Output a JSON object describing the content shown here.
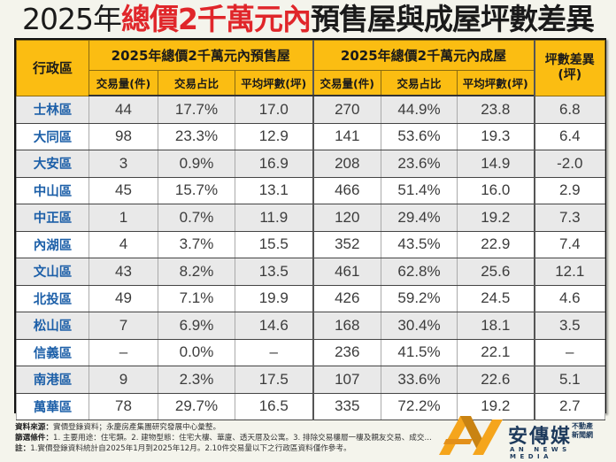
{
  "title": {
    "year": "2025年",
    "highlight": "總價2千萬元內",
    "rest": "預售屋與成屋坪數差異"
  },
  "colors": {
    "header_bg": "#fbbd12",
    "title_red": "#e0262a",
    "district_blue": "#1c5fa8",
    "row_alt": "#e9e9e9"
  },
  "table": {
    "district_header": "行政區",
    "group_presale": "2025年總價2千萬元內預售屋",
    "group_existing": "2025年總價2千萬元內成屋",
    "diff_header_line1": "坪數差異",
    "diff_header_line2": "(坪)",
    "sub_headers": [
      "交易量(件)",
      "交易占比",
      "平均坪數(坪)",
      "交易量(件)",
      "交易占比",
      "平均坪數(坪)"
    ],
    "rows": [
      {
        "district": "士林區",
        "pre_count": "44",
        "pre_share": "17.7%",
        "pre_avg": "17.0",
        "ex_count": "270",
        "ex_share": "44.9%",
        "ex_avg": "23.8",
        "diff": "6.8"
      },
      {
        "district": "大同區",
        "pre_count": "98",
        "pre_share": "23.3%",
        "pre_avg": "12.9",
        "ex_count": "141",
        "ex_share": "53.6%",
        "ex_avg": "19.3",
        "diff": "6.4"
      },
      {
        "district": "大安區",
        "pre_count": "3",
        "pre_share": "0.9%",
        "pre_avg": "16.9",
        "ex_count": "208",
        "ex_share": "23.6%",
        "ex_avg": "14.9",
        "diff": "-2.0"
      },
      {
        "district": "中山區",
        "pre_count": "45",
        "pre_share": "15.7%",
        "pre_avg": "13.1",
        "ex_count": "466",
        "ex_share": "51.4%",
        "ex_avg": "16.0",
        "diff": "2.9"
      },
      {
        "district": "中正區",
        "pre_count": "1",
        "pre_share": "0.7%",
        "pre_avg": "11.9",
        "ex_count": "120",
        "ex_share": "29.4%",
        "ex_avg": "19.2",
        "diff": "7.3"
      },
      {
        "district": "內湖區",
        "pre_count": "4",
        "pre_share": "3.7%",
        "pre_avg": "15.5",
        "ex_count": "352",
        "ex_share": "43.5%",
        "ex_avg": "22.9",
        "diff": "7.4"
      },
      {
        "district": "文山區",
        "pre_count": "43",
        "pre_share": "8.2%",
        "pre_avg": "13.5",
        "ex_count": "461",
        "ex_share": "62.8%",
        "ex_avg": "25.6",
        "diff": "12.1"
      },
      {
        "district": "北投區",
        "pre_count": "49",
        "pre_share": "7.1%",
        "pre_avg": "19.9",
        "ex_count": "426",
        "ex_share": "59.2%",
        "ex_avg": "24.5",
        "diff": "4.6"
      },
      {
        "district": "松山區",
        "pre_count": "7",
        "pre_share": "6.9%",
        "pre_avg": "14.6",
        "ex_count": "168",
        "ex_share": "30.4%",
        "ex_avg": "18.1",
        "diff": "3.5"
      },
      {
        "district": "信義區",
        "pre_count": "–",
        "pre_share": "0.0%",
        "pre_avg": "–",
        "ex_count": "236",
        "ex_share": "41.5%",
        "ex_avg": "22.1",
        "diff": "–"
      },
      {
        "district": "南港區",
        "pre_count": "9",
        "pre_share": "2.3%",
        "pre_avg": "17.5",
        "ex_count": "107",
        "ex_share": "33.6%",
        "ex_avg": "22.6",
        "diff": "5.1"
      },
      {
        "district": "萬華區",
        "pre_count": "78",
        "pre_share": "29.7%",
        "pre_avg": "16.5",
        "ex_count": "335",
        "ex_share": "72.2%",
        "ex_avg": "19.2",
        "diff": "2.7"
      }
    ]
  },
  "notes": {
    "source_label": "資料來源：",
    "source_text": "實價登錄資料；永慶房產集團研究發展中心彙整。",
    "filter_label": "篩選條件：",
    "filter_text": "1. 主要用途：住宅類。2. 建物型態：住宅大樓、華廈、透天厝及公寓。3. 排除交易樓層一樓及親友交易、成交...",
    "note_label": "註：",
    "note_text": "1.實價登錄資料統計自2025年1月到2025年12月。2.10件交易量以下之行政區資料僅作參考。"
  },
  "logo": {
    "name_cn": "安傳媒",
    "tag_line1": "不動產",
    "tag_line2": "新聞網",
    "name_en": "AN NEWS MEDIA"
  }
}
